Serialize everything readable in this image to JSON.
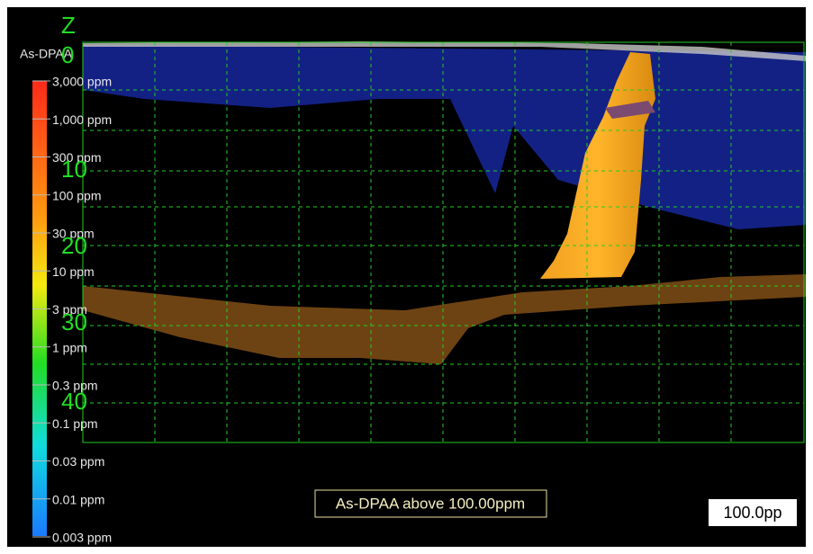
{
  "legend": {
    "title": "As-DPAA",
    "labels": [
      "3,000 ppm",
      "1,000 ppm",
      "300 ppm",
      "100 ppm",
      "30 ppm",
      "10 ppm",
      "3 ppm",
      "1 ppm",
      "0.3 ppm",
      "0.1 ppm",
      "0.03 ppm",
      "0.01 ppm",
      "0.003 ppm"
    ]
  },
  "z_axis": {
    "title": "Z",
    "labels": [
      "0",
      "10",
      "20",
      "30",
      "40"
    ]
  },
  "annotation": "As-DPAA above 100.00ppm",
  "scale_box": "100.0pp"
}
